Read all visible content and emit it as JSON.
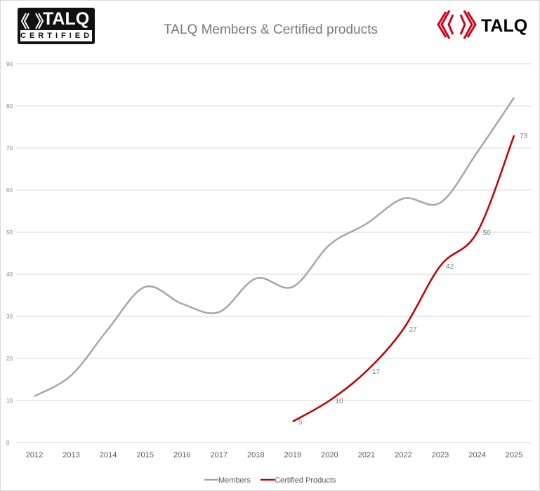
{
  "logos": {
    "left": "TALQ CERTIFIED",
    "right": "TALQ"
  },
  "chart_data": {
    "type": "line",
    "title": "TALQ Members & Certified products",
    "categories": [
      "2012",
      "2013",
      "2014",
      "2015",
      "2016",
      "2017",
      "2018",
      "2019",
      "2020",
      "2021",
      "2022",
      "2023",
      "2024",
      "2025"
    ],
    "ylim": [
      0,
      90
    ],
    "yticks": [
      0,
      10,
      20,
      30,
      40,
      50,
      60,
      70,
      80,
      90
    ],
    "grid": true,
    "smooth": true,
    "legend": "bottom",
    "series": [
      {
        "name": "Members",
        "color": "#a6a6a6",
        "values": [
          11,
          16,
          27,
          37,
          33,
          31,
          39,
          37,
          47,
          52,
          58,
          57,
          69,
          82
        ],
        "labels": false
      },
      {
        "name": "Certified Products",
        "color": "#c00000",
        "values": [
          null,
          null,
          null,
          null,
          null,
          null,
          null,
          5,
          10,
          17,
          27,
          42,
          50,
          73
        ],
        "labels": true
      }
    ]
  }
}
